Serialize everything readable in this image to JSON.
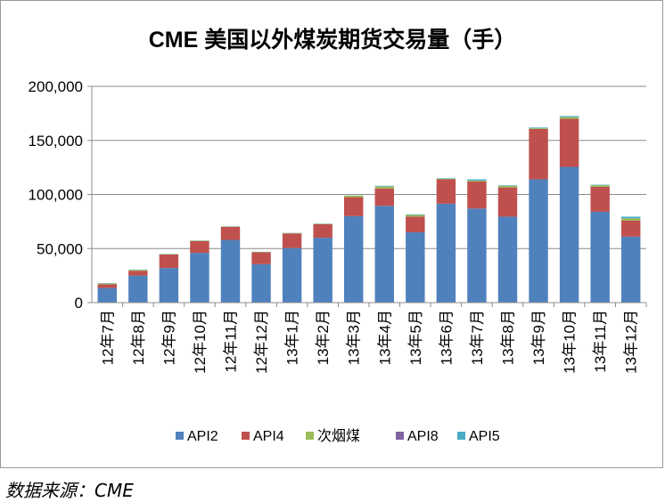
{
  "chart_data": {
    "type": "bar",
    "stacked": true,
    "title": "CME 美国以外煤炭期货交易量（手）",
    "xlabel": "",
    "ylabel": "",
    "ylim": [
      0,
      200000
    ],
    "yticks": [
      0,
      50000,
      100000,
      150000,
      200000
    ],
    "ytick_labels": [
      "0",
      "50,000",
      "100,000",
      "150,000",
      "200,000"
    ],
    "grid": true,
    "legend_position": "bottom",
    "categories": [
      "12年7月",
      "12年8月",
      "12年9月",
      "12年10月",
      "12年11月",
      "12年12月",
      "13年1月",
      "13年2月",
      "13年3月",
      "13年4月",
      "13年5月",
      "13年6月",
      "13年7月",
      "13年8月",
      "13年9月",
      "13年10月",
      "13年11月",
      "13年12月"
    ],
    "series": [
      {
        "name": "API2",
        "color": "#4f81bd",
        "values": [
          13500,
          25000,
          32000,
          46000,
          58000,
          35500,
          50500,
          60000,
          80000,
          89500,
          65000,
          91500,
          87000,
          79500,
          114000,
          125500,
          84000,
          61000
        ]
      },
      {
        "name": "API4",
        "color": "#c0504d",
        "values": [
          3500,
          4500,
          12500,
          11000,
          12000,
          11000,
          13500,
          12500,
          17500,
          16000,
          14500,
          22500,
          25000,
          27000,
          46500,
          44500,
          23000,
          15000
        ]
      },
      {
        "name": "次烟煤",
        "color": "#9bbb59",
        "values": [
          700,
          800,
          300,
          300,
          300,
          300,
          300,
          400,
          1300,
          2000,
          1600,
          500,
          800,
          1500,
          700,
          1500,
          1500,
          2000
        ]
      },
      {
        "name": "API8",
        "color": "#8064a2",
        "values": [
          0,
          0,
          0,
          0,
          0,
          0,
          0,
          0,
          0,
          0,
          0,
          0,
          0,
          0,
          0,
          0,
          0,
          0
        ]
      },
      {
        "name": "API5",
        "color": "#4bacc6",
        "values": [
          300,
          300,
          200,
          200,
          200,
          200,
          200,
          200,
          200,
          500,
          500,
          500,
          1200,
          500,
          700,
          1000,
          500,
          1500
        ]
      }
    ]
  },
  "source_note": "数据来源：CME"
}
